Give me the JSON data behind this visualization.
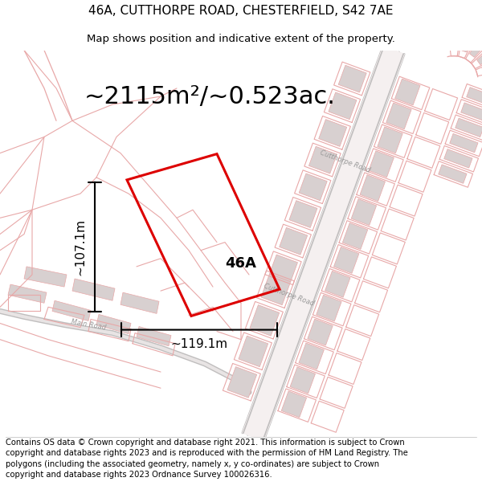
{
  "title_line1": "46A, CUTTHORPE ROAD, CHESTERFIELD, S42 7AE",
  "title_line2": "Map shows position and indicative extent of the property.",
  "area_text": "~2115m²/~0.523ac.",
  "dim_width": "~119.1m",
  "dim_height": "~107.1m",
  "label_46A": "46A",
  "footer_text": "Contains OS data © Crown copyright and database right 2021. This information is subject to Crown copyright and database rights 2023 and is reproduced with the permission of HM Land Registry. The polygons (including the associated geometry, namely x, y co-ordinates) are subject to Crown copyright and database rights 2023 Ordnance Survey 100026316.",
  "bg_color": "#ffffff",
  "map_bg": "#f7f4f4",
  "road_color": "#e8a8a8",
  "building_fill": "#d8d0d0",
  "building_edge": "#e8a8a8",
  "highlight_color": "#dd0000",
  "gray_road": "#c0bebe",
  "dim_color": "#000000",
  "text_color": "#000000",
  "road_label_color": "#999999",
  "title_fontsize": 11,
  "subtitle_fontsize": 9.5,
  "area_fontsize": 22,
  "label_fontsize": 13,
  "dim_fontsize": 11,
  "footer_fontsize": 7.2
}
